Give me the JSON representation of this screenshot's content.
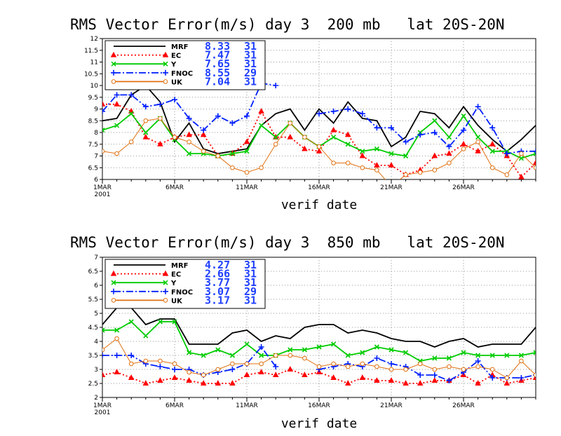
{
  "chart_data": [
    {
      "type": "line",
      "title": "RMS Vector Error(m/s) day 3  200 mb   lat 20S-20N",
      "xlabel": "verif date",
      "ylabel": "",
      "ylim": [
        6,
        12
      ],
      "ytick_step": 0.5,
      "x_count": 31,
      "x_ticks": [
        {
          "i": 0,
          "label": "1MAR",
          "sub": "2001"
        },
        {
          "i": 5,
          "label": "6MAR",
          "sub": ""
        },
        {
          "i": 10,
          "label": "11MAR",
          "sub": ""
        },
        {
          "i": 15,
          "label": "16MAR",
          "sub": ""
        },
        {
          "i": 20,
          "label": "21MAR",
          "sub": ""
        },
        {
          "i": 25,
          "label": "26MAR",
          "sub": ""
        }
      ],
      "grid": true,
      "legend_position": "top-left",
      "series": [
        {
          "name": "MRF",
          "mean": "8.33",
          "count": "31",
          "color": "#000000",
          "dash": "",
          "marker": "none",
          "values": [
            8.5,
            8.6,
            9.6,
            10.0,
            9.3,
            7.6,
            8.4,
            7.3,
            7.1,
            7.2,
            7.3,
            8.3,
            8.8,
            9.0,
            8.1,
            9.0,
            8.4,
            9.3,
            8.6,
            8.5,
            7.4,
            7.8,
            8.9,
            8.8,
            8.2,
            9.1,
            8.3,
            7.7,
            7.2,
            7.7,
            8.3
          ]
        },
        {
          "name": "EC",
          "mean": "7.47",
          "count": "31",
          "color": "#ff0000",
          "dash": "2,3",
          "marker": "triangle",
          "values": [
            9.2,
            9.2,
            8.9,
            7.8,
            7.5,
            7.8,
            7.9,
            7.9,
            7.0,
            7.1,
            7.6,
            8.9,
            7.8,
            7.8,
            7.3,
            7.2,
            8.1,
            7.9,
            7.0,
            6.6,
            6.6,
            6.2,
            6.4,
            7.0,
            7.1,
            7.5,
            7.2,
            7.5,
            7.0,
            6.1,
            6.7
          ]
        },
        {
          "name": "Y",
          "mean": "7.65",
          "count": "31",
          "color": "#00cc00",
          "dash": "",
          "marker": "x",
          "values": [
            8.1,
            8.3,
            8.8,
            8.0,
            8.6,
            7.7,
            7.1,
            7.1,
            7.0,
            7.1,
            7.2,
            8.3,
            7.8,
            8.4,
            7.8,
            7.4,
            7.8,
            7.5,
            7.2,
            7.3,
            7.1,
            7.0,
            8.0,
            8.5,
            7.8,
            8.7,
            7.8,
            7.2,
            7.2,
            6.9,
            7.1
          ]
        },
        {
          "name": "FNOC",
          "mean": "8.55",
          "count": "29",
          "color": "#0020ff",
          "dash": "10,3,2,3",
          "marker": "plus",
          "values": [
            8.9,
            9.6,
            9.6,
            9.1,
            9.2,
            9.4,
            8.6,
            8.1,
            8.7,
            8.4,
            8.7,
            10.1,
            10.0,
            null,
            null,
            8.8,
            8.9,
            9.0,
            8.8,
            8.2,
            8.2,
            7.6,
            7.9,
            8.0,
            7.4,
            8.1,
            9.1,
            8.2,
            7.1,
            7.2,
            7.2
          ]
        },
        {
          "name": "UK",
          "mean": "7.04",
          "count": "31",
          "color": "#e07010",
          "dash": "",
          "marker": "circle",
          "values": [
            7.2,
            7.1,
            7.6,
            8.5,
            8.6,
            7.8,
            7.6,
            7.2,
            7.0,
            6.5,
            6.3,
            6.5,
            7.5,
            8.4,
            7.8,
            7.4,
            6.7,
            6.7,
            6.5,
            6.4,
            5.7,
            6.2,
            6.3,
            6.4,
            6.7,
            7.3,
            7.6,
            6.5,
            6.2,
            7.1,
            6.5
          ]
        }
      ]
    },
    {
      "type": "line",
      "title": "RMS Vector Error(m/s) day 3  850 mb   lat 20S-20N",
      "xlabel": "verif date",
      "ylabel": "",
      "ylim": [
        2,
        7
      ],
      "ytick_step": 0.5,
      "x_count": 31,
      "x_ticks": [
        {
          "i": 0,
          "label": "1MAR",
          "sub": "2001"
        },
        {
          "i": 5,
          "label": "6MAR",
          "sub": ""
        },
        {
          "i": 10,
          "label": "11MAR",
          "sub": ""
        },
        {
          "i": 15,
          "label": "16MAR",
          "sub": ""
        },
        {
          "i": 20,
          "label": "21MAR",
          "sub": ""
        },
        {
          "i": 25,
          "label": "26MAR",
          "sub": ""
        }
      ],
      "grid": true,
      "legend_position": "top-left",
      "series": [
        {
          "name": "MRF",
          "mean": "4.27",
          "count": "31",
          "color": "#000000",
          "dash": "",
          "marker": "none",
          "values": [
            4.6,
            5.2,
            5.2,
            4.6,
            4.8,
            4.8,
            3.9,
            3.9,
            3.9,
            4.3,
            4.4,
            4.0,
            4.2,
            4.1,
            4.5,
            4.6,
            4.6,
            4.3,
            4.4,
            4.3,
            4.1,
            4.0,
            4.0,
            3.8,
            4.0,
            4.1,
            3.8,
            3.9,
            3.9,
            3.9,
            4.5
          ]
        },
        {
          "name": "EC",
          "mean": "2.66",
          "count": "31",
          "color": "#ff0000",
          "dash": "2,3",
          "marker": "triangle",
          "values": [
            2.8,
            2.9,
            2.7,
            2.5,
            2.6,
            2.7,
            2.6,
            2.5,
            2.5,
            2.5,
            2.8,
            2.9,
            2.8,
            3.0,
            2.8,
            2.9,
            2.7,
            2.5,
            2.7,
            2.6,
            2.6,
            2.5,
            2.5,
            2.6,
            2.6,
            2.8,
            2.5,
            2.8,
            2.5,
            2.6,
            2.7
          ]
        },
        {
          "name": "Y",
          "mean": "3.77",
          "count": "31",
          "color": "#00cc00",
          "dash": "",
          "marker": "x",
          "values": [
            4.4,
            4.4,
            4.7,
            4.2,
            4.7,
            4.7,
            3.6,
            3.5,
            3.7,
            3.5,
            3.9,
            3.5,
            3.5,
            3.7,
            3.7,
            3.8,
            3.9,
            3.5,
            3.6,
            3.8,
            3.7,
            3.6,
            3.3,
            3.4,
            3.4,
            3.6,
            3.5,
            3.5,
            3.5,
            3.5,
            3.6
          ]
        },
        {
          "name": "FNOC",
          "mean": "3.07",
          "count": "29",
          "color": "#0020ff",
          "dash": "10,3,2,3",
          "marker": "plus",
          "values": [
            3.5,
            3.5,
            3.5,
            3.2,
            3.1,
            3.0,
            3.0,
            2.8,
            2.9,
            3.0,
            3.2,
            3.8,
            3.1,
            null,
            null,
            3.0,
            3.1,
            3.2,
            3.1,
            3.4,
            3.2,
            3.1,
            2.8,
            2.8,
            2.6,
            2.9,
            3.3,
            2.7,
            2.7,
            2.7,
            2.8
          ]
        },
        {
          "name": "UK",
          "mean": "3.17",
          "count": "31",
          "color": "#e07010",
          "dash": "",
          "marker": "circle",
          "values": [
            3.7,
            4.1,
            3.2,
            3.3,
            3.3,
            3.2,
            2.9,
            2.8,
            3.0,
            3.2,
            3.2,
            3.2,
            3.5,
            3.5,
            3.4,
            3.1,
            3.2,
            3.1,
            3.2,
            3.1,
            3.0,
            3.0,
            3.2,
            3.0,
            3.1,
            3.0,
            3.1,
            3.0,
            2.7,
            3.3,
            2.8
          ]
        }
      ]
    }
  ]
}
